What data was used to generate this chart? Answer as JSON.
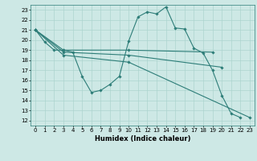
{
  "bg_color": "#cde8e5",
  "line_color": "#2d7d78",
  "grid_color": "#acd4cf",
  "xlabel": "Humidex (Indice chaleur)",
  "xlim": [
    -0.5,
    23.5
  ],
  "ylim": [
    11.5,
    23.5
  ],
  "yticks": [
    12,
    13,
    14,
    15,
    16,
    17,
    18,
    19,
    20,
    21,
    22,
    23
  ],
  "xticks": [
    0,
    1,
    2,
    3,
    4,
    5,
    6,
    7,
    8,
    9,
    10,
    11,
    12,
    13,
    14,
    15,
    16,
    17,
    18,
    19,
    20,
    21,
    22,
    23
  ],
  "curves": [
    {
      "x": [
        0,
        1,
        2,
        3,
        4,
        5,
        6,
        7,
        8,
        9,
        10,
        11,
        12,
        13,
        14,
        15,
        16,
        17,
        18,
        19,
        20,
        21,
        22
      ],
      "y": [
        21,
        19.8,
        19.0,
        19.0,
        18.8,
        16.4,
        14.8,
        15.0,
        15.6,
        16.4,
        19.9,
        22.3,
        22.8,
        22.6,
        23.3,
        21.2,
        21.1,
        19.2,
        18.7,
        17.0,
        14.5,
        12.7,
        12.3
      ]
    },
    {
      "x": [
        0,
        3,
        10,
        19
      ],
      "y": [
        21,
        19.0,
        19.0,
        18.8
      ]
    },
    {
      "x": [
        0,
        3,
        10,
        20
      ],
      "y": [
        21,
        18.8,
        18.5,
        17.3
      ]
    },
    {
      "x": [
        0,
        3,
        10,
        23
      ],
      "y": [
        21,
        18.5,
        17.8,
        12.3
      ]
    }
  ]
}
